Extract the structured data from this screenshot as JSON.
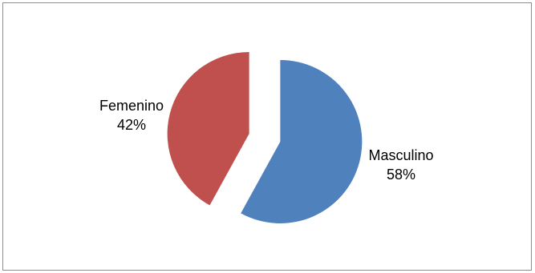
{
  "chart_data": {
    "type": "pie",
    "title": "",
    "slices": [
      {
        "label": "Masculino",
        "percent_label": "58%",
        "value": 58,
        "color": "#4f81bd",
        "exploded": true
      },
      {
        "label": "Femenino",
        "percent_label": "42%",
        "value": 42,
        "color": "#c0504d",
        "exploded": true
      }
    ],
    "legend": "none",
    "start_angle": "12 o'clock, clockwise"
  }
}
